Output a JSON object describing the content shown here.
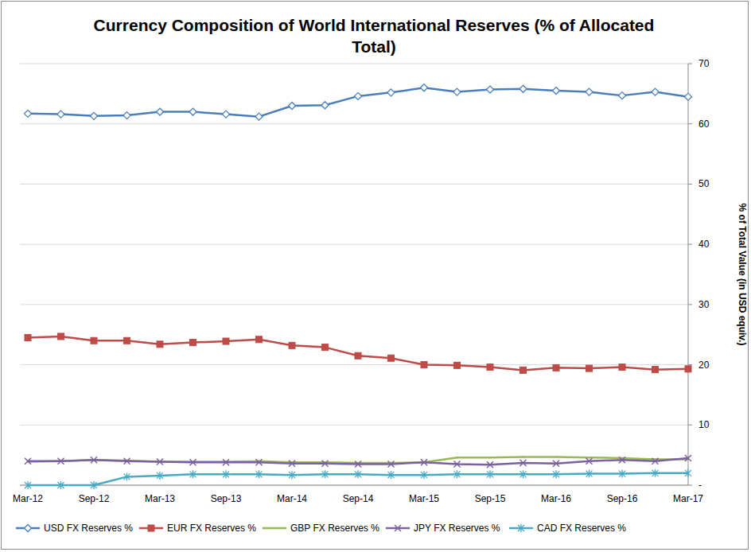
{
  "chart_data": {
    "type": "line",
    "title": "Currency Composition of World International Reserves (% of Allocated Total)",
    "y_label": "% of Total Value (in USD equiv.)",
    "categories": [
      "Mar-12",
      null,
      "Sep-12",
      null,
      "Mar-13",
      null,
      "Sep-13",
      null,
      "Mar-14",
      null,
      "Sep-14",
      null,
      "Mar-15",
      null,
      "Sep-15",
      null,
      "Mar-16",
      null,
      "Sep-16",
      null,
      "Mar-17"
    ],
    "series": [
      {
        "name": "USD FX Reserves %",
        "color": "#4a7ebb",
        "marker": "diamond",
        "values": [
          61.7,
          61.6,
          61.3,
          61.4,
          62.0,
          62.0,
          61.6,
          61.2,
          63.0,
          63.1,
          64.6,
          65.2,
          66.0,
          65.3,
          65.7,
          65.8,
          65.5,
          65.3,
          64.7,
          65.3,
          64.5
        ]
      },
      {
        "name": "EUR FX Reserves %",
        "color": "#be4b48",
        "marker": "square",
        "values": [
          24.5,
          24.7,
          24.0,
          24.0,
          23.4,
          23.7,
          23.9,
          24.2,
          23.2,
          22.9,
          21.5,
          21.1,
          20.0,
          19.9,
          19.6,
          19.1,
          19.5,
          19.4,
          19.6,
          19.2,
          19.3
        ]
      },
      {
        "name": "GBP FX Reserves %",
        "color": "#98b954",
        "marker": "none",
        "values": [
          3.9,
          4.0,
          4.2,
          4.1,
          3.9,
          3.9,
          3.9,
          4.0,
          3.8,
          3.8,
          3.7,
          3.7,
          3.8,
          4.6,
          4.6,
          4.7,
          4.7,
          4.6,
          4.5,
          4.3,
          4.3
        ]
      },
      {
        "name": "JPY FX Reserves %",
        "color": "#7d60a0",
        "marker": "x",
        "values": [
          4.0,
          4.0,
          4.2,
          4.0,
          3.9,
          3.8,
          3.8,
          3.8,
          3.6,
          3.6,
          3.5,
          3.5,
          3.8,
          3.5,
          3.4,
          3.7,
          3.6,
          4.0,
          4.2,
          4.0,
          4.5
        ]
      },
      {
        "name": "CAD FX Reserves %",
        "color": "#46aac5",
        "marker": "asterisk",
        "values": [
          0,
          0,
          0,
          1.4,
          1.6,
          1.8,
          1.8,
          1.8,
          1.7,
          1.8,
          1.8,
          1.7,
          1.7,
          1.8,
          1.8,
          1.8,
          1.8,
          1.9,
          1.9,
          2.0,
          2.0
        ]
      }
    ],
    "ylim": [
      0,
      70
    ],
    "yticks": [
      {
        "value": 0,
        "label": "-"
      },
      10,
      20,
      30,
      40,
      50,
      60,
      70
    ],
    "grid": true,
    "legend": "bottom"
  }
}
